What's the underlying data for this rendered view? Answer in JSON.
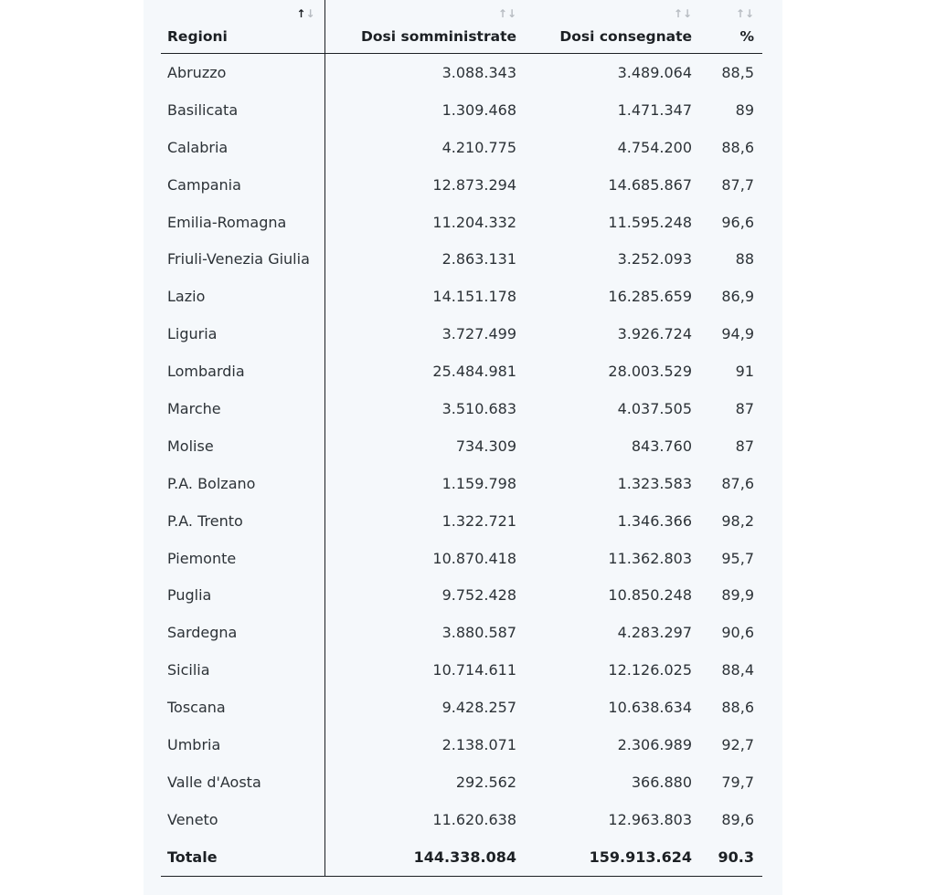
{
  "table": {
    "headers": {
      "region": "Regioni",
      "administered": "Dosi somministrate",
      "delivered": "Dosi consegnate",
      "percent": "%"
    },
    "sort_icon": "↑↓",
    "rows": [
      {
        "region": "Abruzzo",
        "administered": "3.088.343",
        "delivered": "3.489.064",
        "percent": "88,5"
      },
      {
        "region": "Basilicata",
        "administered": "1.309.468",
        "delivered": "1.471.347",
        "percent": "89"
      },
      {
        "region": "Calabria",
        "administered": "4.210.775",
        "delivered": "4.754.200",
        "percent": "88,6"
      },
      {
        "region": "Campania",
        "administered": "12.873.294",
        "delivered": "14.685.867",
        "percent": "87,7"
      },
      {
        "region": "Emilia-Romagna",
        "administered": "11.204.332",
        "delivered": "11.595.248",
        "percent": "96,6"
      },
      {
        "region": "Friuli-Venezia Giulia",
        "administered": "2.863.131",
        "delivered": "3.252.093",
        "percent": "88"
      },
      {
        "region": "Lazio",
        "administered": "14.151.178",
        "delivered": "16.285.659",
        "percent": "86,9"
      },
      {
        "region": "Liguria",
        "administered": "3.727.499",
        "delivered": "3.926.724",
        "percent": "94,9"
      },
      {
        "region": "Lombardia",
        "administered": "25.484.981",
        "delivered": "28.003.529",
        "percent": "91"
      },
      {
        "region": "Marche",
        "administered": "3.510.683",
        "delivered": "4.037.505",
        "percent": "87"
      },
      {
        "region": "Molise",
        "administered": "734.309",
        "delivered": "843.760",
        "percent": "87"
      },
      {
        "region": "P.A. Bolzano",
        "administered": "1.159.798",
        "delivered": "1.323.583",
        "percent": "87,6"
      },
      {
        "region": "P.A. Trento",
        "administered": "1.322.721",
        "delivered": "1.346.366",
        "percent": "98,2"
      },
      {
        "region": "Piemonte",
        "administered": "10.870.418",
        "delivered": "11.362.803",
        "percent": "95,7"
      },
      {
        "region": "Puglia",
        "administered": "9.752.428",
        "delivered": "10.850.248",
        "percent": "89,9"
      },
      {
        "region": "Sardegna",
        "administered": "3.880.587",
        "delivered": "4.283.297",
        "percent": "90,6"
      },
      {
        "region": "Sicilia",
        "administered": "10.714.611",
        "delivered": "12.126.025",
        "percent": "88,4"
      },
      {
        "region": "Toscana",
        "administered": "9.428.257",
        "delivered": "10.638.634",
        "percent": "88,6"
      },
      {
        "region": "Umbria",
        "administered": "2.138.071",
        "delivered": "2.306.989",
        "percent": "92,7"
      },
      {
        "region": "Valle d'Aosta",
        "administered": "292.562",
        "delivered": "366.880",
        "percent": "79,7"
      },
      {
        "region": "Veneto",
        "administered": "11.620.638",
        "delivered": "12.963.803",
        "percent": "89,6"
      }
    ],
    "total": {
      "region": "Totale",
      "administered": "144.338.084",
      "delivered": "159.913.624",
      "percent": "90.3"
    }
  }
}
